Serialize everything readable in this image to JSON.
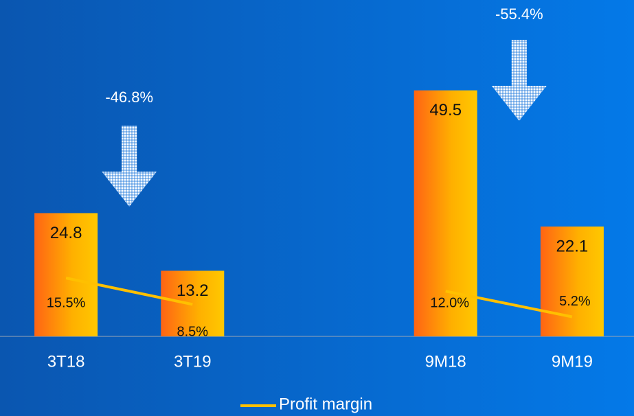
{
  "chart_data": {
    "type": "bar",
    "categories": [
      "3T18",
      "3T19",
      null,
      "9M18",
      "9M19"
    ],
    "series": [
      {
        "values": [
          24.8,
          13.2,
          null,
          49.5,
          22.1
        ],
        "color": "#ffc000"
      },
      {
        "name": "Profit margin",
        "type": "line",
        "axis": "y2",
        "color": "#ffc000",
        "values": [
          15.5,
          8.5,
          null,
          12.0,
          5.2
        ],
        "value_labels": [
          "15.5%",
          "8.5%",
          null,
          "12.0%",
          "5.2%"
        ]
      }
    ],
    "ylim": [
      0,
      50
    ],
    "y2lim": [
      0,
      66
    ],
    "annotations": [
      {
        "text": "-46.8%",
        "from": 0,
        "to": 1
      },
      {
        "text": "-55.4%",
        "from": 3,
        "to": 4
      }
    ]
  }
}
